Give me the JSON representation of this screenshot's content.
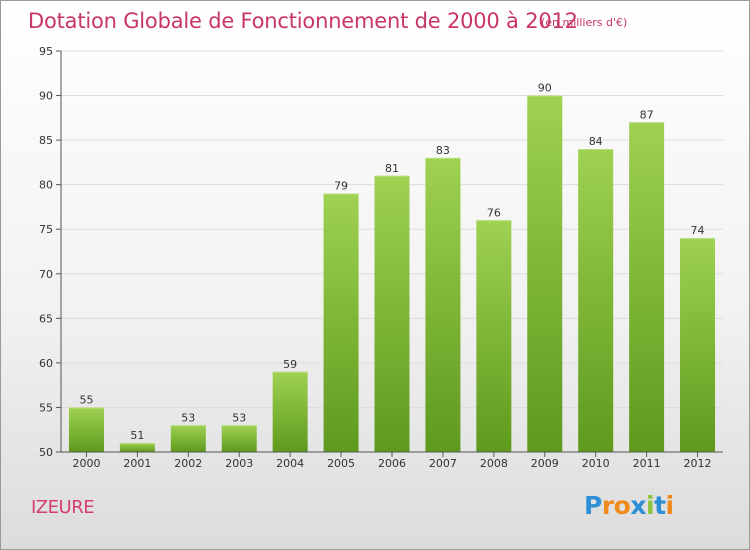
{
  "title": "Dotation Globale de Fonctionnement de 2000 à 2012",
  "subtitle": "(en milliers d'€)",
  "commune": "IZEURE",
  "logo": {
    "text": "Proxiti",
    "letters": [
      {
        "ch": "P",
        "color": "#2e8fd6"
      },
      {
        "ch": "r",
        "color": "#f08a1c"
      },
      {
        "ch": "o",
        "color": "#f08a1c"
      },
      {
        "ch": "x",
        "color": "#2e8fd6"
      },
      {
        "ch": "i",
        "color": "#8cc63f"
      },
      {
        "ch": "t",
        "color": "#2e8fd6"
      },
      {
        "ch": "i",
        "color": "#f08a1c"
      }
    ]
  },
  "colors": {
    "title": "#c8356b",
    "bar_top": "#9fd153",
    "bar_bottom": "#5e9a1c",
    "axis": "#555555",
    "grid": "#dddddd"
  },
  "chart_data": {
    "type": "bar",
    "categories": [
      "2000",
      "2001",
      "2002",
      "2003",
      "2004",
      "2005",
      "2006",
      "2007",
      "2008",
      "2009",
      "2010",
      "2011",
      "2012"
    ],
    "values": [
      55,
      51,
      53,
      53,
      59,
      79,
      81,
      83,
      76,
      90,
      84,
      87,
      74
    ],
    "ylim": [
      50,
      95
    ],
    "yticks": [
      50,
      55,
      60,
      65,
      70,
      75,
      80,
      85,
      90,
      95
    ],
    "grid": true,
    "data_labels": true
  }
}
